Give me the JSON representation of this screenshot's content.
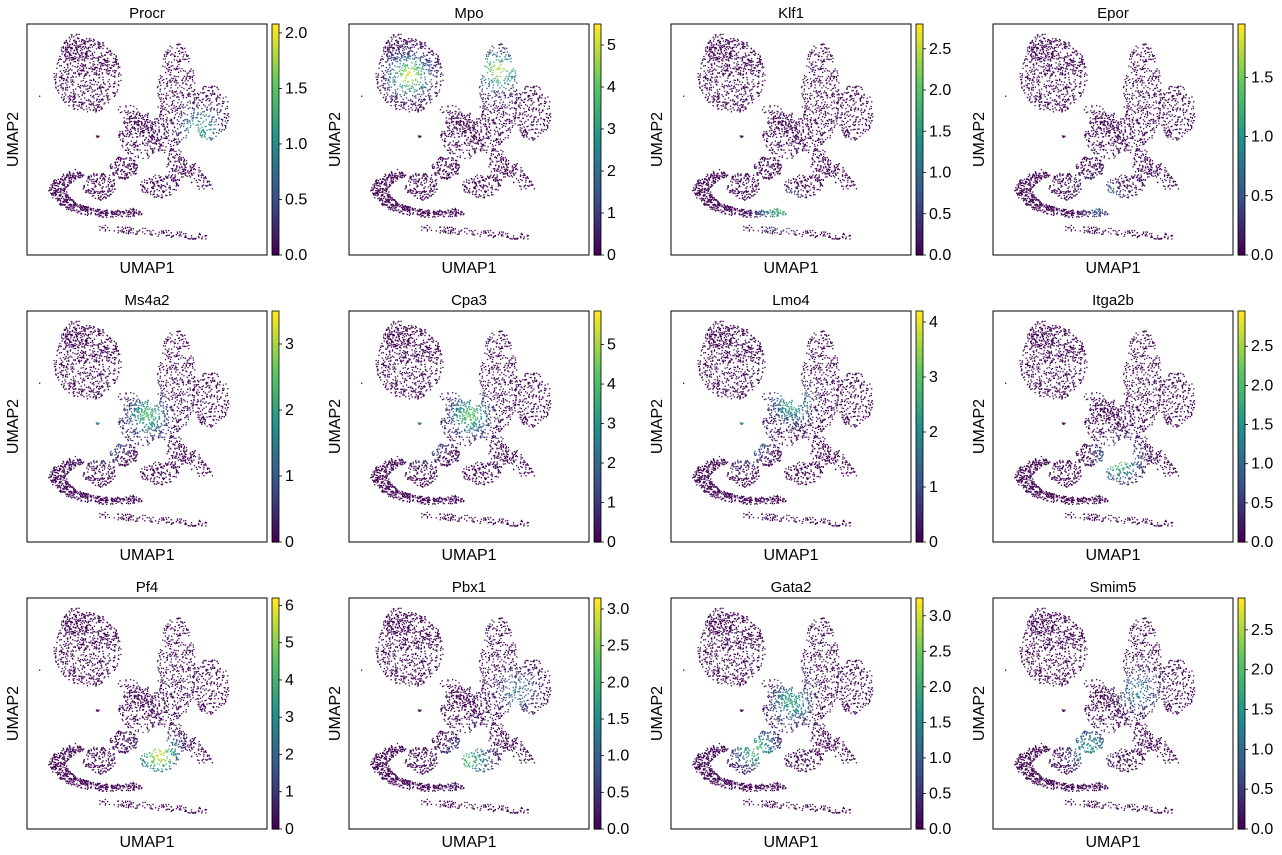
{
  "chart_data": {
    "type": "scatter",
    "plot_kind": "UMAP embedding colored by gene expression",
    "colormap": "viridis",
    "colormap_stops": [
      "#440154",
      "#3b528b",
      "#21918c",
      "#5ec962",
      "#fde725"
    ],
    "xlabel": "UMAP1",
    "ylabel": "UMAP2",
    "grid": false,
    "layout": {
      "rows": 3,
      "cols": 4
    },
    "panels": [
      {
        "title": "Procr",
        "vmin": 0,
        "vmax": 2.08,
        "ticks": [
          "0.0",
          "0.5",
          "1.0",
          "1.5",
          "2.0"
        ],
        "hot": [
          [
            0.72,
            0.45,
            0.6
          ]
        ]
      },
      {
        "title": "Mpo",
        "vmin": 0,
        "vmax": 5.5,
        "ticks": [
          "0",
          "1",
          "2",
          "3",
          "4",
          "5"
        ],
        "hot": [
          [
            0.25,
            0.22,
            0.95
          ],
          [
            0.62,
            0.2,
            0.9
          ]
        ]
      },
      {
        "title": "Klf1",
        "vmin": 0,
        "vmax": 2.8,
        "ticks": [
          "0.0",
          "0.5",
          "1.0",
          "1.5",
          "2.0",
          "2.5"
        ],
        "hot": [
          [
            0.45,
            0.8,
            0.65
          ]
        ]
      },
      {
        "title": "Epor",
        "vmin": 0,
        "vmax": 1.95,
        "ticks": [
          "0.0",
          "0.5",
          "1.0",
          "1.5"
        ],
        "hot": [
          [
            0.45,
            0.75,
            0.5
          ]
        ]
      },
      {
        "title": "Ms4a2",
        "vmin": 0,
        "vmax": 3.5,
        "ticks": [
          "0",
          "1",
          "2",
          "3"
        ],
        "hot": [
          [
            0.5,
            0.45,
            0.7
          ],
          [
            0.3,
            0.55,
            0.8
          ]
        ]
      },
      {
        "title": "Cpa3",
        "vmin": 0,
        "vmax": 5.85,
        "ticks": [
          "0",
          "1",
          "2",
          "3",
          "4",
          "5"
        ],
        "hot": [
          [
            0.5,
            0.45,
            0.75
          ],
          [
            0.3,
            0.55,
            0.7
          ]
        ]
      },
      {
        "title": "Lmo4",
        "vmin": 0,
        "vmax": 4.2,
        "ticks": [
          "0",
          "1",
          "2",
          "3",
          "4"
        ],
        "hot": [
          [
            0.3,
            0.55,
            0.85
          ],
          [
            0.5,
            0.4,
            0.6
          ]
        ]
      },
      {
        "title": "Itga2b",
        "vmin": 0,
        "vmax": 2.95,
        "ticks": [
          "0.0",
          "0.5",
          "1.0",
          "1.5",
          "2.0",
          "2.5"
        ],
        "hot": [
          [
            0.52,
            0.65,
            0.75
          ]
        ]
      },
      {
        "title": "Pf4",
        "vmin": 0,
        "vmax": 6.2,
        "ticks": [
          "0",
          "1",
          "2",
          "3",
          "4",
          "5",
          "6"
        ],
        "hot": [
          [
            0.55,
            0.68,
            0.95
          ]
        ]
      },
      {
        "title": "Pbx1",
        "vmin": 0,
        "vmax": 3.15,
        "ticks": [
          "0.0",
          "0.5",
          "1.0",
          "1.5",
          "2.0",
          "2.5",
          "3.0"
        ],
        "hot": [
          [
            0.5,
            0.7,
            0.7
          ],
          [
            0.7,
            0.4,
            0.4
          ]
        ]
      },
      {
        "title": "Gata2",
        "vmin": 0,
        "vmax": 3.25,
        "ticks": [
          "0.0",
          "0.5",
          "1.0",
          "1.5",
          "2.0",
          "2.5",
          "3.0"
        ],
        "hot": [
          [
            0.35,
            0.65,
            0.7
          ],
          [
            0.5,
            0.45,
            0.6
          ]
        ]
      },
      {
        "title": "Smim5",
        "vmin": 0,
        "vmax": 2.9,
        "ticks": [
          "0.0",
          "0.5",
          "1.0",
          "1.5",
          "2.0",
          "2.5"
        ],
        "hot": [
          [
            0.4,
            0.65,
            0.55
          ],
          [
            0.6,
            0.4,
            0.45
          ]
        ]
      }
    ]
  }
}
